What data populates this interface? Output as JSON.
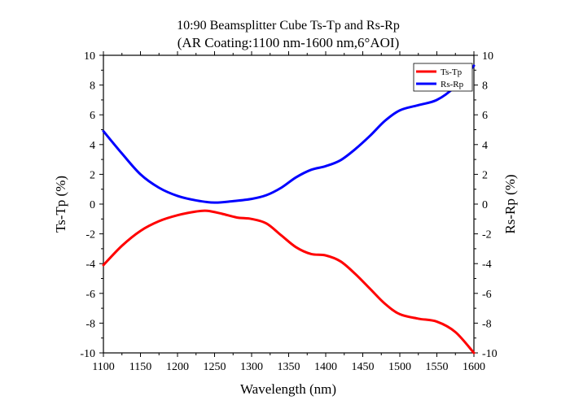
{
  "chart_data": {
    "type": "line",
    "title": "10:90 Beamsplitter Cube Ts-Tp and Rs-Rp",
    "subtitle": "(AR Coating:1100 nm-1600 nm,6°AOI)",
    "xlabel": "Wavelength (nm)",
    "ylabel": "Ts-Tp (%)",
    "ylabel_right": "Rs-Rp (%)",
    "xlim": [
      1100,
      1600
    ],
    "ylim": [
      -10,
      10
    ],
    "ylim_right": [
      -10,
      10
    ],
    "x_ticks": [
      "1100",
      "1150",
      "1200",
      "1250",
      "1300",
      "1350",
      "1400",
      "1450",
      "1500",
      "1550",
      "1600"
    ],
    "y_ticks": [
      "-10",
      "-8",
      "-6",
      "-4",
      "-2",
      "0",
      "2",
      "4",
      "6",
      "8",
      "10"
    ],
    "y_ticks_right": [
      "-10",
      "-8",
      "-6",
      "-4",
      "-2",
      "0",
      "2",
      "4",
      "6",
      "8",
      "10"
    ],
    "grid": false,
    "legend_position": "top-right",
    "series": [
      {
        "name": "Ts-Tp",
        "color": "#ff0000",
        "x": [
          1100,
          1125,
          1150,
          1175,
          1200,
          1225,
          1240,
          1260,
          1280,
          1300,
          1320,
          1340,
          1360,
          1380,
          1400,
          1420,
          1440,
          1460,
          1480,
          1500,
          1525,
          1550,
          1575,
          1600
        ],
        "y": [
          -4.1,
          -2.8,
          -1.8,
          -1.15,
          -0.75,
          -0.5,
          -0.45,
          -0.65,
          -0.9,
          -1.0,
          -1.3,
          -2.1,
          -2.9,
          -3.35,
          -3.45,
          -3.85,
          -4.7,
          -5.7,
          -6.7,
          -7.4,
          -7.7,
          -7.9,
          -8.6,
          -10.0
        ]
      },
      {
        "name": "Rs-Rp",
        "color": "#0000ff",
        "x": [
          1100,
          1125,
          1150,
          1175,
          1200,
          1225,
          1250,
          1275,
          1300,
          1320,
          1340,
          1360,
          1380,
          1400,
          1420,
          1440,
          1460,
          1480,
          1500,
          1525,
          1550,
          1575,
          1600
        ],
        "y": [
          4.9,
          3.4,
          2.0,
          1.1,
          0.55,
          0.25,
          0.1,
          0.2,
          0.35,
          0.6,
          1.1,
          1.8,
          2.3,
          2.55,
          2.95,
          3.7,
          4.6,
          5.6,
          6.3,
          6.65,
          7.0,
          7.9,
          9.3
        ]
      }
    ]
  }
}
